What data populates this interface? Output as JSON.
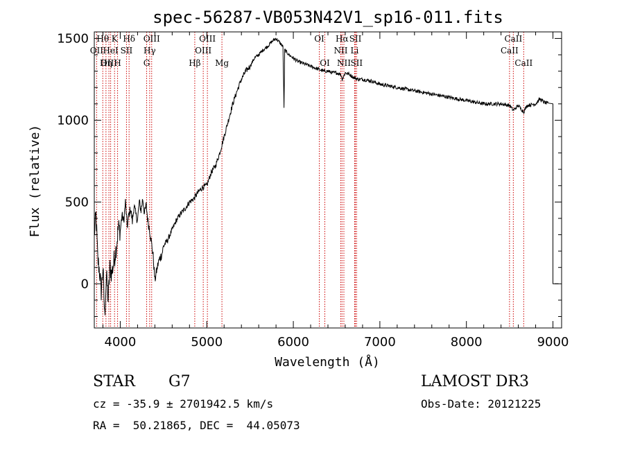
{
  "chart_data": {
    "type": "line",
    "title": "spec-56287-VB053N42V1_sp16-011.fits",
    "xlabel": "Wavelength (Å)",
    "ylabel": "Flux (relative)",
    "xlim": [
      3700,
      9100
    ],
    "ylim": [
      -270,
      1540
    ],
    "x_ticks": [
      4000,
      5000,
      6000,
      7000,
      8000,
      9000
    ],
    "y_ticks": [
      0,
      500,
      1000,
      1500
    ],
    "grid": false,
    "series": [
      {
        "x": [
          3700,
          3720,
          3740,
          3760,
          3780,
          3800,
          3820,
          3840,
          3860,
          3880,
          3900,
          3920,
          3940,
          3960,
          3980,
          4000,
          4020,
          4040,
          4060,
          4080,
          4100,
          4120,
          4140,
          4160,
          4180,
          4200,
          4220,
          4240,
          4260,
          4280,
          4300,
          4320,
          4340,
          4360,
          4380,
          4400,
          4420,
          4440,
          4460,
          4480,
          4500,
          4550,
          4600,
          4650,
          4700,
          4750,
          4800,
          4850,
          4900,
          4950,
          5000,
          5050,
          5100,
          5150,
          5200,
          5250,
          5300,
          5350,
          5400,
          5450,
          5500,
          5550,
          5600,
          5650,
          5700,
          5750,
          5800,
          5850,
          5880,
          5893,
          5900,
          5950,
          6000,
          6050,
          6100,
          6150,
          6200,
          6250,
          6300,
          6350,
          6400,
          6450,
          6500,
          6550,
          6563,
          6600,
          6650,
          6700,
          6750,
          6800,
          6900,
          7000,
          7100,
          7200,
          7300,
          7400,
          7500,
          7600,
          7700,
          7800,
          7900,
          8000,
          8100,
          8200,
          8300,
          8400,
          8500,
          8542,
          8600,
          8662,
          8700,
          8800,
          8850,
          8900,
          8950,
          9000
        ],
        "y": [
          300,
          420,
          150,
          80,
          -50,
          100,
          -200,
          50,
          -100,
          100,
          60,
          120,
          180,
          250,
          350,
          320,
          420,
          380,
          500,
          350,
          420,
          460,
          380,
          480,
          420,
          390,
          500,
          450,
          520,
          430,
          480,
          380,
          330,
          250,
          170,
          20,
          80,
          130,
          160,
          180,
          230,
          270,
          330,
          390,
          430,
          460,
          500,
          520,
          560,
          590,
          600,
          680,
          720,
          800,
          900,
          1000,
          1100,
          1180,
          1250,
          1300,
          1330,
          1380,
          1400,
          1430,
          1450,
          1480,
          1500,
          1470,
          1450,
          1050,
          1430,
          1400,
          1380,
          1360,
          1350,
          1340,
          1330,
          1320,
          1310,
          1300,
          1300,
          1290,
          1290,
          1280,
          1250,
          1290,
          1280,
          1260,
          1250,
          1250,
          1240,
          1220,
          1210,
          1200,
          1190,
          1180,
          1170,
          1160,
          1150,
          1140,
          1130,
          1120,
          1110,
          1100,
          1100,
          1100,
          1090,
          1060,
          1090,
          1050,
          1090,
          1100,
          1130,
          1110,
          1100,
          0
        ]
      }
    ],
    "line_markers": [
      {
        "label": "Hθ",
        "wavelength": 3798,
        "row": 1
      },
      {
        "label": "OII",
        "wavelength": 3727,
        "row": 2
      },
      {
        "label": "OIII",
        "wavelength": 3869,
        "row": 3
      },
      {
        "label": "Hη",
        "wavelength": 3835,
        "row": 3
      },
      {
        "label": "HeI",
        "wavelength": 3889,
        "row": 2
      },
      {
        "label": "K",
        "wavelength": 3934,
        "row": 1
      },
      {
        "label": "H",
        "wavelength": 3969,
        "row": 3
      },
      {
        "label": "SII",
        "wavelength": 4072,
        "row": 2
      },
      {
        "label": "Hδ",
        "wavelength": 4102,
        "row": 1
      },
      {
        "label": "OIII",
        "wavelength": 4363,
        "row": 1
      },
      {
        "label": "Hγ",
        "wavelength": 4340,
        "row": 2
      },
      {
        "label": "G",
        "wavelength": 4305,
        "row": 3
      },
      {
        "label": "Hβ",
        "wavelength": 4861,
        "row": 3
      },
      {
        "label": "OIII",
        "wavelength": 4959,
        "row": 2
      },
      {
        "label": "OIII",
        "wavelength": 5007,
        "row": 1
      },
      {
        "label": "Mg",
        "wavelength": 5175,
        "row": 3
      },
      {
        "label": "OI",
        "wavelength": 6300,
        "row": 1
      },
      {
        "label": "OI",
        "wavelength": 6364,
        "row": 3
      },
      {
        "label": "NII",
        "wavelength": 6548,
        "row": 2
      },
      {
        "label": "Hα",
        "wavelength": 6563,
        "row": 1
      },
      {
        "label": "NII",
        "wavelength": 6584,
        "row": 3
      },
      {
        "label": "SII",
        "wavelength": 6717,
        "row": 1
      },
      {
        "label": "Li",
        "wavelength": 6708,
        "row": 2
      },
      {
        "label": "SII",
        "wavelength": 6731,
        "row": 3
      },
      {
        "label": "CaII",
        "wavelength": 8498,
        "row": 2
      },
      {
        "label": "CaII",
        "wavelength": 8542,
        "row": 1
      },
      {
        "label": "CaII",
        "wavelength": 8662,
        "row": 3
      }
    ]
  },
  "info": {
    "class": "STAR",
    "subclass": "G7",
    "survey": "LAMOST DR3",
    "velocity": "cz = -35.9 ± 2701942.5 km/s",
    "obs_date": "Obs-Date: 20121225",
    "coords": "RA =  50.21865, DEC =  44.05073"
  }
}
